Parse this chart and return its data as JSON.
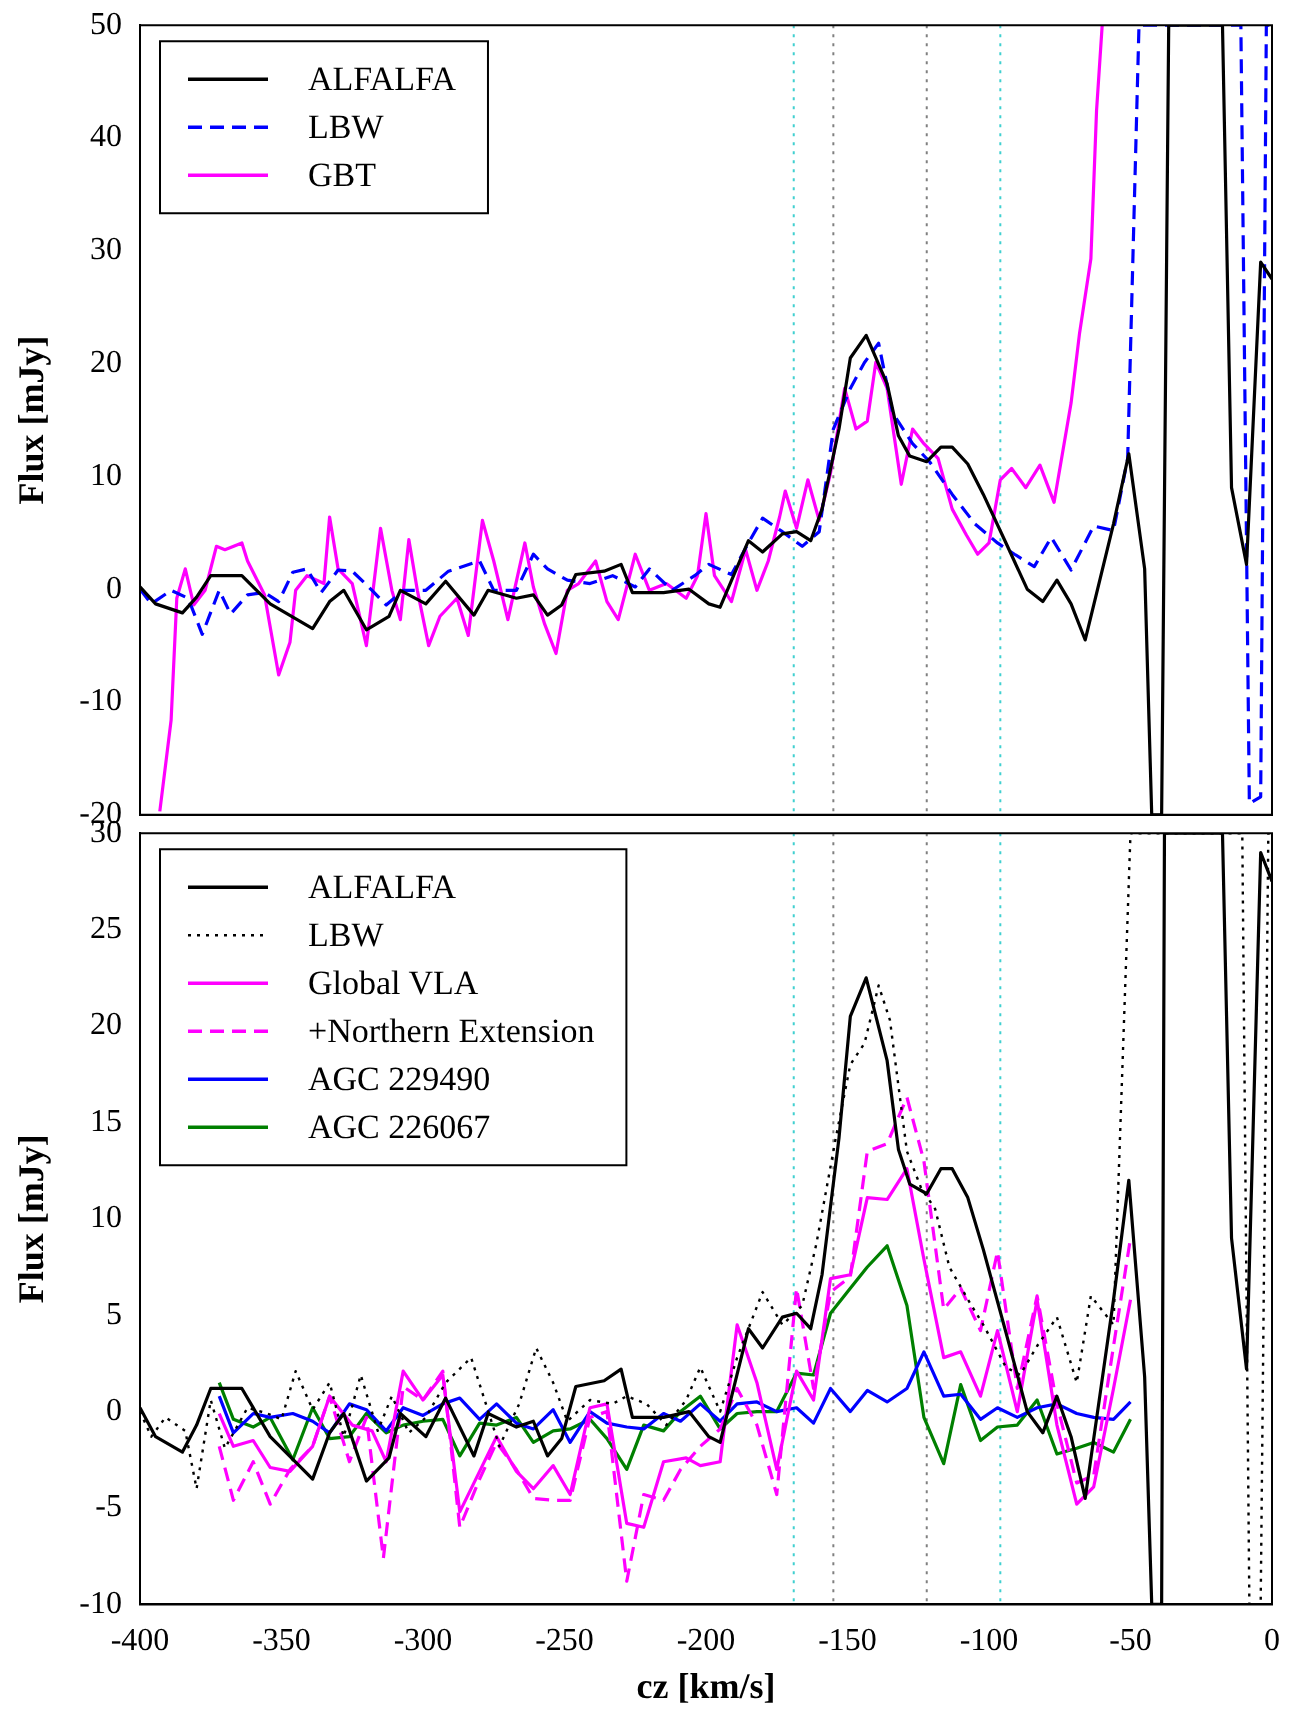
{
  "chart_data": [
    {
      "type": "line",
      "ylabel": "Flux [mJy]",
      "xlim": [
        -400,
        0
      ],
      "xticks": [
        -400,
        -350,
        -300,
        -250,
        -200,
        -150,
        -100,
        -50,
        0
      ],
      "ylim": [
        -20,
        50
      ],
      "yticks": [
        -20,
        -10,
        0,
        10,
        20,
        30,
        40,
        50
      ],
      "tick_labels": "y",
      "legend": "top left",
      "ref_lines": [
        {
          "axis": "x",
          "value": -169,
          "color": "#40d0d0",
          "line_style": "dotted"
        },
        {
          "axis": "x",
          "value": -155,
          "color": "#808080",
          "line_style": "dotted"
        },
        {
          "axis": "x",
          "value": -122,
          "color": "#808080",
          "line_style": "dotted"
        },
        {
          "axis": "x",
          "value": -96,
          "color": "#40d0d0",
          "line_style": "dotted"
        }
      ],
      "series": [
        {
          "name": "ALFALFA",
          "color": "#000000",
          "line_style": "solid",
          "x": [
            -400,
            -394.5,
            -385,
            -380,
            -375,
            -364,
            -354,
            -339,
            -333,
            -328,
            -320,
            -312,
            -308,
            -299,
            -292,
            -282,
            -277,
            -267,
            -261,
            -256,
            -251,
            -246,
            -236,
            -230,
            -226,
            -215,
            -206,
            -199,
            -195,
            -185,
            -180,
            -173,
            -168,
            -163,
            -159,
            -153,
            -149,
            -143.4,
            -136,
            -132,
            -128,
            -122,
            -117,
            -113,
            -107.5,
            -102,
            -94,
            -86.5,
            -81,
            -76,
            -71,
            -66,
            -56,
            -50.6,
            -45,
            -42.5,
            -39,
            -36.5,
            -17.5,
            -14.3,
            -9,
            -4,
            0
          ],
          "values": [
            0.2,
            -1.3,
            -2.1,
            -0.7,
            1.2,
            1.2,
            -1.3,
            -3.5,
            -1.1,
            -0.1,
            -3.6,
            -2.4,
            -0.1,
            -1.3,
            0.7,
            -2.3,
            -0.1,
            -0.8,
            -0.5,
            -2.3,
            -1.4,
            1.3,
            1.6,
            2.2,
            -0.3,
            -0.3,
            0,
            -1.3,
            -1.6,
            4.3,
            3.3,
            4.9,
            5.1,
            4.3,
            7.1,
            14.2,
            20.5,
            22.5,
            18.2,
            13.6,
            11.8,
            11.3,
            12.6,
            12.6,
            11.1,
            8.4,
            4.1,
            0,
            -1.1,
            0.8,
            -1.3,
            -4.5,
            5.8,
            12,
            1.8,
            -20,
            -20,
            50,
            50,
            9,
            2.2,
            29,
            27.5
          ]
        },
        {
          "name": "LBW",
          "color": "#0000ff",
          "line_style": "dashed",
          "x": [
            -400,
            -396,
            -389,
            -383,
            -378,
            -372,
            -368,
            -362,
            -356,
            -351,
            -346,
            -341,
            -336,
            -330,
            -325,
            -318,
            -313,
            -307,
            -299,
            -291,
            -280,
            -275,
            -267,
            -261,
            -256,
            -249,
            -241,
            -233,
            -225,
            -220,
            -212,
            -204,
            -199,
            -191,
            -185,
            -180,
            -173,
            -166,
            -160,
            -155,
            -149,
            -144,
            -139,
            -134,
            -127,
            -121,
            -113,
            -105,
            -97,
            -91,
            -84,
            -78,
            -71,
            -63,
            -56,
            -51,
            -47,
            -11,
            -8,
            -4,
            -2,
            0
          ],
          "values": [
            0,
            -1.3,
            -0.1,
            -0.8,
            -4,
            -0.1,
            -2.2,
            -0.5,
            -0.3,
            -1.1,
            1.5,
            1.8,
            -0.3,
            1.7,
            1.6,
            -0.1,
            -1.4,
            -0.1,
            -0.1,
            1.6,
            2.5,
            -0.1,
            -0.1,
            3.1,
            1.8,
            0.8,
            0.5,
            1.2,
            0.2,
            1.8,
            -0.1,
            1.2,
            2.2,
            1.3,
            4.1,
            6.3,
            5.1,
            3.8,
            5.1,
            14.2,
            17.8,
            20.1,
            21.8,
            15.6,
            12.9,
            11.3,
            8.4,
            5.8,
            4.1,
            3.1,
            2,
            4.6,
            1.7,
            5.6,
            5.2,
            11.6,
            50,
            50,
            -19,
            -18.4,
            50,
            50
          ]
        },
        {
          "name": "GBT",
          "color": "#ff00ff",
          "line_style": "solid",
          "x": [
            -393,
            -389,
            -387,
            -384,
            -381,
            -377,
            -373,
            -370,
            -364,
            -362,
            -356,
            -351,
            -347,
            -345,
            -341,
            -335,
            -333,
            -330,
            -325,
            -320,
            -315,
            -311,
            -308,
            -305,
            -302,
            -298,
            -294,
            -288,
            -284,
            -279,
            -275,
            -270,
            -264,
            -261,
            -257,
            -253,
            -249,
            -245,
            -239,
            -235,
            -231,
            -225,
            -220,
            -214,
            -207,
            -203,
            -200,
            -197,
            -191,
            -186,
            -182,
            -178,
            -174,
            -172,
            -168,
            -164,
            -160,
            -156,
            -151,
            -147,
            -143,
            -140,
            -136,
            -131,
            -127,
            -123,
            -118,
            -113,
            -108,
            -104,
            -100,
            -96,
            -92,
            -87,
            -82,
            -77,
            -71,
            -68,
            -64,
            -62,
            -60
          ],
          "values": [
            -19.7,
            -11.6,
            -0.8,
            1.8,
            -1.4,
            -0.1,
            3.8,
            3.5,
            4.1,
            2.5,
            -0.5,
            -7.6,
            -4.7,
            -0.1,
            1.2,
            0.5,
            6.4,
            1.8,
            0.5,
            -5,
            5.4,
            -0.1,
            -2.7,
            4.4,
            -0.1,
            -5,
            -2.4,
            -0.8,
            -4.1,
            6.1,
            2.5,
            -2.7,
            4.1,
            0.2,
            -3.1,
            -5.7,
            -0.1,
            0.5,
            2.5,
            -1.1,
            -2.7,
            3.1,
            -0.1,
            0.5,
            -0.8,
            1.2,
            6.7,
            1.2,
            -1.1,
            3.5,
            -0.1,
            2.5,
            6.4,
            8.7,
            5.4,
            9.7,
            6.1,
            10.3,
            17.8,
            14.2,
            14.9,
            20.1,
            17.8,
            9.3,
            14.2,
            12.9,
            11.6,
            7.1,
            4.8,
            3.1,
            4.1,
            9.7,
            10.7,
            9,
            11,
            7.7,
            16.5,
            22.7,
            29.3,
            42.4,
            50
          ]
        }
      ]
    },
    {
      "type": "line",
      "xlabel": "cz [km/s]",
      "ylabel": "Flux [mJy]",
      "xlim": [
        -400,
        0
      ],
      "xticks": [
        -400,
        -350,
        -300,
        -250,
        -200,
        -150,
        -100,
        -50,
        0
      ],
      "ylim": [
        -10,
        30
      ],
      "yticks": [
        -10,
        -5,
        0,
        5,
        10,
        15,
        20,
        25,
        30
      ],
      "legend": "top left",
      "ref_lines": [
        {
          "axis": "x",
          "value": -169,
          "color": "#40d0d0",
          "line_style": "dotted"
        },
        {
          "axis": "x",
          "value": -155,
          "color": "#808080",
          "line_style": "dotted"
        },
        {
          "axis": "x",
          "value": -122,
          "color": "#808080",
          "line_style": "dotted"
        },
        {
          "axis": "x",
          "value": -96,
          "color": "#40d0d0",
          "line_style": "dotted"
        }
      ],
      "series": [
        {
          "name": "ALFALFA",
          "color": "#000000",
          "line_style": "solid",
          "x": [
            -400,
            -394.5,
            -385,
            -380,
            -375,
            -364,
            -354,
            -339,
            -333,
            -328,
            -320,
            -312,
            -308,
            -299,
            -292,
            -282,
            -277,
            -267,
            -261,
            -256,
            -251,
            -246,
            -236,
            -230,
            -226,
            -215,
            -206,
            -199,
            -195,
            -185,
            -180,
            -173,
            -168,
            -163,
            -159,
            -153,
            -149,
            -143.4,
            -136,
            -132,
            -128,
            -122,
            -117,
            -113,
            -107.5,
            -102,
            -94,
            -86.5,
            -81,
            -76,
            -71,
            -66,
            -56,
            -50.6,
            -45,
            -42.5,
            -39,
            -38,
            -17.5,
            -14.3,
            -9,
            -4,
            0
          ],
          "values": [
            0.2,
            -1.3,
            -2.1,
            -0.7,
            1.2,
            1.2,
            -1.3,
            -3.5,
            -1.1,
            -0.1,
            -3.6,
            -2.4,
            -0.1,
            -1.3,
            0.7,
            -2.3,
            -0.1,
            -0.8,
            -0.5,
            -2.3,
            -1.4,
            1.3,
            1.6,
            2.2,
            -0.3,
            -0.3,
            0,
            -1.3,
            -1.6,
            4.3,
            3.3,
            4.9,
            5.1,
            4.3,
            7.1,
            14.2,
            20.5,
            22.5,
            18.2,
            13.6,
            11.8,
            11.3,
            12.6,
            12.6,
            11.1,
            8.4,
            4.1,
            0,
            -1.1,
            0.8,
            -1.3,
            -4.5,
            5.8,
            12,
            1.8,
            -10,
            -10,
            30,
            30,
            9,
            2.2,
            29,
            27.5
          ]
        },
        {
          "name": "LBW",
          "color": "#000000",
          "line_style": "dotted",
          "x": [
            -400,
            -396,
            -391,
            -384,
            -380,
            -375,
            -370,
            -362,
            -355,
            -350,
            -345,
            -339,
            -333,
            -328,
            -322,
            -316,
            -311,
            -305,
            -299,
            -292,
            -283,
            -278,
            -273,
            -266,
            -260,
            -254,
            -249,
            -241,
            -233,
            -228,
            -221,
            -214,
            -207,
            -202,
            -195,
            -189,
            -180,
            -173,
            -166,
            -161,
            -154,
            -149,
            -144,
            -139,
            -135,
            -129,
            -124,
            -119,
            -114,
            -107,
            -102,
            -94,
            -89,
            -83,
            -76,
            -69,
            -64,
            -56,
            -50,
            -10.5,
            -8,
            -4,
            -1.3,
            0
          ],
          "values": [
            0,
            -1.3,
            -0.3,
            -1,
            -4,
            0.6,
            -1.9,
            0.2,
            -0.1,
            -0.4,
            2.1,
            0.1,
            1.5,
            -1.3,
            1.9,
            -1,
            0.8,
            -1.1,
            -0.3,
            1.5,
            2.8,
            0.5,
            -1.8,
            0.4,
            3.3,
            1.5,
            -0.5,
            0.6,
            0.4,
            0.8,
            0.4,
            -0.7,
            0.6,
            2.3,
            0,
            2.8,
            6.2,
            4.5,
            5.5,
            8.7,
            14.3,
            18,
            19.1,
            22.1,
            20.3,
            13.5,
            11.6,
            10.5,
            7.5,
            5.7,
            4.5,
            2.3,
            1.9,
            3.4,
            4.9,
            1.5,
            6,
            4.5,
            30,
            30,
            -10,
            -10,
            30,
            30
          ]
        },
        {
          "name": "Global VLA",
          "color": "#ff00ff",
          "line_style": "solid",
          "x": [
            -372,
            -367,
            -360,
            -354,
            -347,
            -339,
            -333,
            -325,
            -318,
            -313,
            -307,
            -300,
            -293,
            -287,
            -280,
            -274,
            -267,
            -261,
            -254,
            -248,
            -241,
            -235,
            -228,
            -222,
            -215,
            -207,
            -202,
            -195,
            -189,
            -182,
            -175,
            -168,
            -162,
            -156,
            -149,
            -143,
            -136,
            -129,
            -123,
            -116,
            -110,
            -103,
            -97,
            -90,
            -83,
            -76,
            -69,
            -63,
            -56,
            -50
          ],
          "values": [
            -0.1,
            -1.8,
            -1.5,
            -2.9,
            -3.1,
            -1.8,
            0.8,
            -0.7,
            -1,
            -2.6,
            2.1,
            0.6,
            1.9,
            -5.2,
            -3.1,
            -1.3,
            -3.1,
            -4,
            -2.8,
            -4.3,
            0.2,
            0.4,
            -5.8,
            -6,
            -2.6,
            -2.4,
            -2.8,
            -2.6,
            4.5,
            1.5,
            -3,
            2.1,
            0.6,
            6.9,
            7.1,
            11.1,
            11,
            12.6,
            7.9,
            2.8,
            3.1,
            0.8,
            4.2,
            0,
            5.8,
            -0.7,
            -4.8,
            -3.9,
            1.2,
            5.8
          ]
        },
        {
          "name": "+Northern Extension",
          "color": "#ff00ff",
          "line_style": "dashed",
          "x": [
            -372,
            -367,
            -360,
            -354,
            -347,
            -339,
            -333,
            -326,
            -320,
            -314,
            -307,
            -300,
            -293,
            -287,
            -280,
            -274,
            -267,
            -261,
            -254,
            -248,
            -241,
            -235,
            -228,
            -222,
            -215,
            -209,
            -202,
            -195,
            -189,
            -182,
            -175,
            -168,
            -162,
            -156,
            -149,
            -143,
            -136,
            -129,
            -123,
            -116,
            -110,
            -103,
            -97,
            -90,
            -83,
            -76,
            -69,
            -63,
            -56,
            -50
          ],
          "values": [
            -1.8,
            -4.6,
            -2.6,
            -4.8,
            -3,
            -1.8,
            0.8,
            -2.6,
            -0.3,
            -7.6,
            1.3,
            0.6,
            2.1,
            -6,
            -3.5,
            -1.6,
            -3,
            -4.5,
            -4.6,
            -4.6,
            -0.3,
            0,
            -8.8,
            -4.3,
            -4.6,
            -3,
            -1.8,
            -0.9,
            1.2,
            -0.7,
            -4.3,
            6.4,
            1.2,
            6.2,
            7,
            13.5,
            13.9,
            16.3,
            13,
            5.3,
            6.4,
            4.2,
            8.3,
            1.2,
            6,
            0.4,
            -3.7,
            -3.3,
            3.4,
            9
          ]
        },
        {
          "name": "AGC 229490",
          "color": "#0000ff",
          "line_style": "solid",
          "x": [
            -372,
            -367,
            -360,
            -354,
            -346,
            -339,
            -333,
            -326,
            -320,
            -313,
            -307,
            -300,
            -293,
            -287,
            -280,
            -274,
            -267,
            -261,
            -254,
            -248,
            -241,
            -235,
            -228,
            -222,
            -215,
            -209,
            -202,
            -195,
            -189,
            -182,
            -175,
            -168,
            -162,
            -156,
            -149,
            -143,
            -136,
            -129,
            -123,
            -116,
            -110,
            -103,
            -97,
            -90,
            -83,
            -76,
            -69,
            -63,
            -56,
            -50
          ],
          "values": [
            0.8,
            -1.1,
            -0.1,
            -0.3,
            -0.1,
            -0.5,
            -1.1,
            0.4,
            0.1,
            -1,
            0.2,
            -0.2,
            0.4,
            0.7,
            -0.4,
            0.4,
            -0.6,
            -0.9,
            0.1,
            -1.6,
            0,
            -0.6,
            -0.8,
            -0.9,
            -0.1,
            -0.5,
            0.4,
            -0.5,
            0.4,
            0.5,
            0,
            0.2,
            -0.6,
            1.2,
            0,
            1.1,
            0.5,
            1.2,
            3.1,
            0.8,
            0.9,
            -0.4,
            0.2,
            -0.3,
            0.2,
            0.4,
            -0.1,
            -0.3,
            -0.4,
            0.5
          ]
        },
        {
          "name": "AGC 226067",
          "color": "#008000",
          "line_style": "solid",
          "x": [
            -372,
            -367,
            -360,
            -354,
            -346,
            -339,
            -333,
            -326,
            -320,
            -313,
            -307,
            -300,
            -293,
            -287,
            -280,
            -274,
            -267,
            -261,
            -254,
            -248,
            -241,
            -235,
            -228,
            -222,
            -215,
            -209,
            -202,
            -195,
            -189,
            -182,
            -175,
            -168,
            -162,
            -156,
            -149,
            -143,
            -136,
            -129,
            -123,
            -116,
            -110,
            -103,
            -97,
            -90,
            -83,
            -76,
            -69,
            -63,
            -56,
            -50
          ],
          "values": [
            1.5,
            -0.4,
            -0.8,
            -0.3,
            -2.5,
            0.2,
            -1.4,
            -1.3,
            -0.1,
            -1.1,
            -0.7,
            -0.5,
            -0.4,
            -2.3,
            -0.6,
            -0.7,
            -0.3,
            -1.6,
            -1,
            -0.9,
            -0.4,
            -1.4,
            -3,
            -0.7,
            -1,
            0,
            0.8,
            -0.9,
            -0.1,
            0,
            0,
            2,
            1.9,
            5.1,
            6.4,
            7.5,
            8.6,
            5.5,
            -0.3,
            -2.7,
            1.4,
            -1.5,
            -0.8,
            -0.7,
            0.6,
            -2.2,
            -1.9,
            -1.6,
            -2.1,
            -0.4
          ]
        }
      ]
    }
  ]
}
